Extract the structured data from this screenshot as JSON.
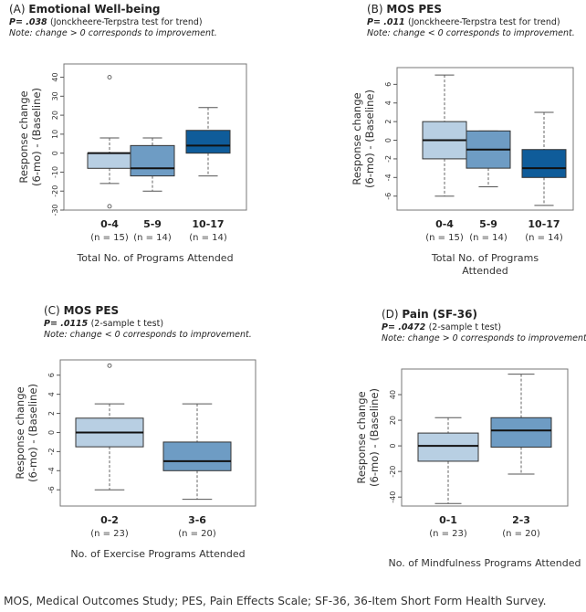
{
  "colors": {
    "light": "#b8cfe3",
    "mid": "#6e9cc4",
    "dark": "#0f5c9a",
    "frame": "#777777"
  },
  "footer": "MOS, Medical Outcomes Study; PES, Pain Effects Scale; SF-36, 36-Item Short Form Health Survey.",
  "chart_data": [
    {
      "type": "box",
      "panel_label": "(A)",
      "title": "Emotional Well-being",
      "pvalue": "P= .038",
      "test": "(Jonckheere-Terpstra test for trend)",
      "note": "Note: change > 0 corresponds to improvement.",
      "ylabel": [
        "Response change",
        "(6-mo) - (Baseline)"
      ],
      "xlabel": [
        "Total No. of Programs Attended"
      ],
      "ylim": [
        -30,
        47
      ],
      "yticks": [
        -30,
        -20,
        -10,
        0,
        10,
        20,
        30,
        40
      ],
      "categories": [
        "0-4",
        "5-9",
        "10-17"
      ],
      "ns": [
        "(n = 15)",
        "(n = 14)",
        "(n = 14)"
      ],
      "fills": [
        "light",
        "mid",
        "dark"
      ],
      "boxes": [
        {
          "whisker_low": -16,
          "q1": -8,
          "median": 0,
          "q3": 0,
          "whisker_high": 8,
          "outliers": [
            40,
            -28
          ]
        },
        {
          "whisker_low": -20,
          "q1": -12,
          "median": -8,
          "q3": 4,
          "whisker_high": 8,
          "outliers": []
        },
        {
          "whisker_low": -12,
          "q1": 0,
          "median": 4,
          "q3": 12,
          "whisker_high": 24,
          "outliers": []
        }
      ]
    },
    {
      "type": "box",
      "panel_label": "(B)",
      "title": "MOS PES",
      "pvalue": "P= .011",
      "test": "(Jonckheere-Terpstra test for trend)",
      "note": "Note: change < 0 corresponds to improvement.",
      "ylabel": [
        "Response change",
        "(6-mo) - (Baseline)"
      ],
      "xlabel": [
        "Total No. of Programs",
        "Attended"
      ],
      "ylim": [
        -7.5,
        7.8
      ],
      "yticks": [
        -6,
        -4,
        -2,
        0,
        2,
        4,
        6
      ],
      "categories": [
        "0-4",
        "5-9",
        "10-17"
      ],
      "ns": [
        "(n = 15)",
        "(n = 14)",
        "(n = 14)"
      ],
      "fills": [
        "light",
        "mid",
        "dark"
      ],
      "boxes": [
        {
          "whisker_low": -6,
          "q1": -2,
          "median": 0,
          "q3": 2,
          "whisker_high": 7,
          "outliers": []
        },
        {
          "whisker_low": -5,
          "q1": -3,
          "median": -1,
          "q3": 1,
          "whisker_high": 1,
          "outliers": []
        },
        {
          "whisker_low": -7,
          "q1": -4,
          "median": -3,
          "q3": -1,
          "whisker_high": 3,
          "outliers": []
        }
      ]
    },
    {
      "type": "box",
      "panel_label": "(C)",
      "title": "MOS PES",
      "pvalue": "P= .0115",
      "test": "(2-sample t test)",
      "note": "Note: change < 0 corresponds to improvement.",
      "ylabel": [
        "Response change",
        "(6-mo) - (Baseline)"
      ],
      "xlabel": [
        "No. of Exercise Programs Attended"
      ],
      "ylim": [
        -7.7,
        7.6
      ],
      "yticks": [
        -6,
        -4,
        -2,
        0,
        2,
        4,
        6
      ],
      "categories": [
        "0-2",
        "3-6"
      ],
      "ns": [
        "(n = 23)",
        "(n = 20)"
      ],
      "fills": [
        "light",
        "mid"
      ],
      "boxes": [
        {
          "whisker_low": -6,
          "q1": -1.5,
          "median": 0,
          "q3": 1.5,
          "whisker_high": 3,
          "outliers": [
            7
          ]
        },
        {
          "whisker_low": -7,
          "q1": -4,
          "median": -3,
          "q3": -1,
          "whisker_high": 3,
          "outliers": []
        }
      ]
    },
    {
      "type": "box",
      "panel_label": "(D)",
      "title": "Pain (SF-36)",
      "pvalue": "P= .0472",
      "test": "(2-sample t test)",
      "note": "Note: change > 0 corresponds to improvement.",
      "ylabel": [
        "Response change",
        "(6-mo) - (Baseline)"
      ],
      "xlabel": [
        "No. of Mindfulness Programs Attended"
      ],
      "ylim": [
        -47,
        60
      ],
      "yticks": [
        -40,
        -20,
        0,
        20,
        40
      ],
      "categories": [
        "0-1",
        "2-3"
      ],
      "ns": [
        "(n = 23)",
        "(n = 20)"
      ],
      "fills": [
        "light",
        "mid"
      ],
      "boxes": [
        {
          "whisker_low": -45,
          "q1": -12,
          "median": 0,
          "q3": 10,
          "whisker_high": 22,
          "outliers": []
        },
        {
          "whisker_low": -22,
          "q1": -1,
          "median": 12,
          "q3": 22,
          "whisker_high": 56,
          "outliers": []
        }
      ]
    }
  ]
}
